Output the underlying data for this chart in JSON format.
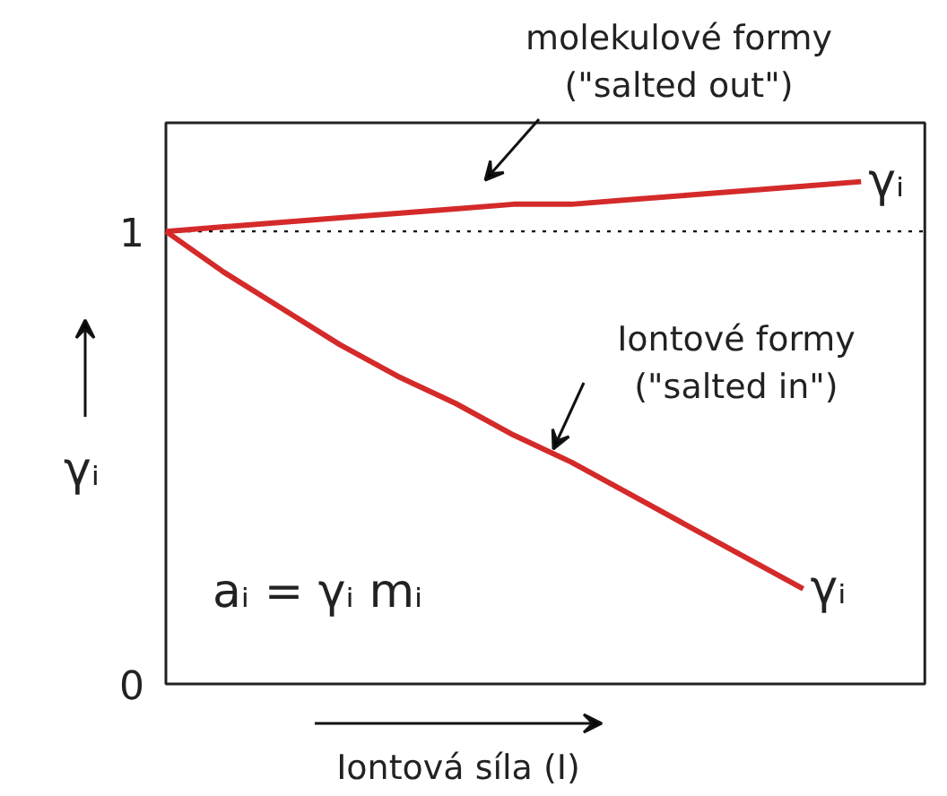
{
  "chart_data": {
    "type": "line",
    "xlabel": "Iontová síla (I)",
    "ylabel": "γᵢ",
    "categories": [
      null,
      null,
      null,
      null,
      null,
      null,
      null,
      null,
      null,
      null,
      null,
      null,
      null
    ],
    "ylim": [
      0,
      1.24
    ],
    "yticks": [
      0,
      1
    ],
    "series": [
      {
        "name": "γᵢ",
        "color": "#d42a2a",
        "values": [
          1.0,
          1.01,
          1.02,
          1.03,
          1.04,
          1.05,
          1.06,
          1.06,
          1.07,
          1.08,
          1.09,
          1.1,
          1.11
        ]
      },
      {
        "name": "γᵢ",
        "color": "#d42a2a",
        "values": [
          1.0,
          0.91,
          0.83,
          0.75,
          0.68,
          0.62,
          0.55,
          0.49,
          0.42,
          0.35,
          0.28,
          0.21,
          null
        ]
      }
    ],
    "ref_lines": [
      {
        "axis": "y",
        "value": 1,
        "line_style": "dotted",
        "color": "#000000"
      }
    ],
    "annotations": [
      "molekulové formy\n(\"salted out\")",
      "Iontové formy\n(\"salted in\")",
      "aᵢ = γᵢ mᵢ"
    ]
  }
}
